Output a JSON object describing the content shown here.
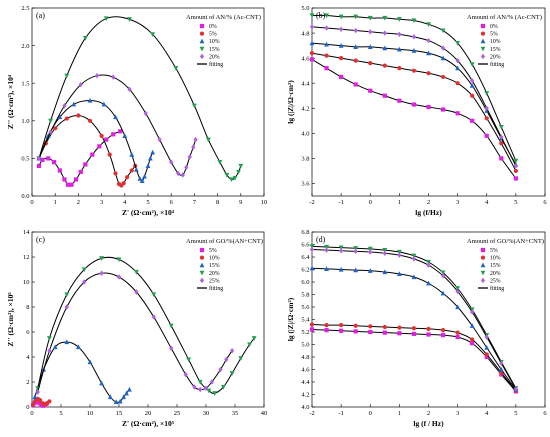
{
  "chart_data": [
    {
      "panel": "(a)",
      "type": "scatter",
      "xlabel": "Z' (Ω·cm²), ×10⁴",
      "ylabel": "Z'' (Ω·cm²), ×10⁴",
      "xlim": [
        0,
        10
      ],
      "ylim": [
        0,
        2.5
      ],
      "xticks": [
        "0",
        "1",
        "2",
        "3",
        "4",
        "5",
        "6",
        "7",
        "8",
        "9",
        "10"
      ],
      "yticks": [
        "0.0",
        "0.5",
        "1.0",
        "1.5",
        "2.0",
        "2.5"
      ],
      "legend_title": "Amount of AN/% (Ac-CNT)",
      "legend_position": "top-right",
      "series": [
        {
          "name": "0%",
          "color": "#e020e0",
          "marker": "square",
          "x": [
            0.3,
            0.45,
            0.7,
            0.95,
            1.2,
            1.4,
            1.55,
            1.7,
            1.9,
            2.1,
            2.3,
            2.6,
            2.9,
            3.2,
            3.5,
            3.8
          ],
          "y": [
            0.4,
            0.48,
            0.5,
            0.45,
            0.34,
            0.22,
            0.15,
            0.15,
            0.22,
            0.32,
            0.42,
            0.55,
            0.66,
            0.75,
            0.82,
            0.86
          ]
        },
        {
          "name": "5%",
          "color": "#e03030",
          "marker": "circle",
          "x": [
            0.3,
            0.6,
            1.0,
            1.5,
            2.0,
            2.5,
            3.0,
            3.35,
            3.6,
            3.75,
            3.85,
            3.95,
            4.1,
            4.3,
            4.45
          ],
          "y": [
            0.5,
            0.7,
            0.9,
            1.03,
            1.07,
            1.0,
            0.8,
            0.55,
            0.3,
            0.16,
            0.14,
            0.17,
            0.25,
            0.34,
            0.4
          ]
        },
        {
          "name": "10%",
          "color": "#1e64c8",
          "marker": "triangle-up",
          "x": [
            0.3,
            0.7,
            1.2,
            1.8,
            2.5,
            3.1,
            3.6,
            4.0,
            4.3,
            4.5,
            4.65,
            4.75,
            4.85,
            5.0,
            5.1,
            5.2
          ],
          "y": [
            0.5,
            0.8,
            1.05,
            1.22,
            1.27,
            1.22,
            1.05,
            0.8,
            0.55,
            0.35,
            0.23,
            0.2,
            0.26,
            0.4,
            0.5,
            0.58
          ]
        },
        {
          "name": "15%",
          "color": "#22a050",
          "marker": "triangle-down",
          "x": [
            0.3,
            0.8,
            1.5,
            2.3,
            3.2,
            4.2,
            5.2,
            6.2,
            7.0,
            7.6,
            8.1,
            8.4,
            8.6,
            8.75,
            8.9,
            9.0
          ],
          "y": [
            0.5,
            1.0,
            1.6,
            2.1,
            2.36,
            2.35,
            2.15,
            1.7,
            1.2,
            0.75,
            0.45,
            0.28,
            0.22,
            0.24,
            0.32,
            0.4
          ]
        },
        {
          "name": "20%",
          "color": "#b060e0",
          "marker": "diamond",
          "x": [
            0.3,
            0.8,
            1.4,
            2.1,
            2.8,
            3.5,
            4.2,
            4.9,
            5.5,
            6.0,
            6.3,
            6.5,
            6.65,
            6.8,
            6.95,
            7.05
          ],
          "y": [
            0.5,
            0.85,
            1.2,
            1.48,
            1.6,
            1.58,
            1.42,
            1.1,
            0.75,
            0.45,
            0.3,
            0.28,
            0.38,
            0.52,
            0.65,
            0.75
          ]
        }
      ],
      "fitting": {
        "name": "fitting",
        "color": "#000000"
      }
    },
    {
      "panel": "(b)",
      "type": "scatter",
      "xlabel": "lg (f/Hz)",
      "ylabel": "lg (|Z|/Ω·cm²)",
      "xlim": [
        -2,
        6
      ],
      "ylim": [
        3.5,
        5.0
      ],
      "xticks": [
        "-2",
        "-1",
        "0",
        "1",
        "2",
        "3",
        "4",
        "5",
        "6"
      ],
      "yticks": [
        "3.6",
        "3.8",
        "4.0",
        "4.2",
        "4.4",
        "4.6",
        "4.8",
        "5.0"
      ],
      "legend_title": "Amount of AN/% (Ac-CNT)",
      "legend_position": "top-right",
      "series": [
        {
          "name": "0%",
          "color": "#e020e0",
          "marker": "square",
          "x": [
            -2,
            -1.5,
            -1,
            -0.5,
            0,
            0.5,
            1,
            1.5,
            2,
            2.5,
            3,
            3.5,
            4,
            4.5,
            5
          ],
          "y": [
            4.59,
            4.52,
            4.45,
            4.39,
            4.34,
            4.3,
            4.26,
            4.23,
            4.21,
            4.19,
            4.16,
            4.1,
            3.98,
            3.8,
            3.64
          ]
        },
        {
          "name": "5%",
          "color": "#e03030",
          "marker": "circle",
          "x": [
            -2,
            -1.5,
            -1,
            -0.5,
            0,
            0.5,
            1,
            1.5,
            2,
            2.5,
            3,
            3.5,
            4,
            4.5,
            5
          ],
          "y": [
            4.64,
            4.62,
            4.6,
            4.58,
            4.56,
            4.54,
            4.52,
            4.5,
            4.48,
            4.45,
            4.4,
            4.3,
            4.12,
            3.92,
            3.7
          ]
        },
        {
          "name": "10%",
          "color": "#1e64c8",
          "marker": "triangle-up",
          "x": [
            -2,
            -1.5,
            -1,
            -0.5,
            0,
            0.5,
            1,
            1.5,
            2,
            2.5,
            3,
            3.5,
            4,
            4.5,
            5
          ],
          "y": [
            4.72,
            4.71,
            4.7,
            4.69,
            4.69,
            4.68,
            4.67,
            4.66,
            4.64,
            4.6,
            4.52,
            4.38,
            4.18,
            3.96,
            3.75
          ]
        },
        {
          "name": "15%",
          "color": "#22a050",
          "marker": "triangle-down",
          "x": [
            -2,
            -1.5,
            -1,
            -0.5,
            0,
            0.5,
            1,
            1.5,
            2,
            2.5,
            3,
            3.5,
            4,
            4.5,
            5
          ],
          "y": [
            4.94,
            4.94,
            4.93,
            4.93,
            4.92,
            4.92,
            4.91,
            4.9,
            4.87,
            4.82,
            4.72,
            4.55,
            4.32,
            4.05,
            3.78
          ]
        },
        {
          "name": "20%",
          "color": "#b060e0",
          "marker": "diamond",
          "x": [
            -2,
            -1.5,
            -1,
            -0.5,
            0,
            0.5,
            1,
            1.5,
            2,
            2.5,
            3,
            3.5,
            4,
            4.5,
            5
          ],
          "y": [
            4.85,
            4.84,
            4.83,
            4.82,
            4.81,
            4.8,
            4.79,
            4.77,
            4.74,
            4.68,
            4.58,
            4.42,
            4.2,
            3.97,
            3.74
          ]
        }
      ],
      "fitting": {
        "name": "fitting",
        "color": "#000000"
      }
    },
    {
      "panel": "(c)",
      "type": "scatter",
      "xlabel": "Z' (Ω·cm²), ×10⁵",
      "ylabel": "Z'' (Ω·cm²), ×10⁵",
      "xlim": [
        0,
        40
      ],
      "ylim": [
        0,
        14
      ],
      "xticks": [
        "0",
        "5",
        "10",
        "15",
        "20",
        "25",
        "30",
        "35",
        "40"
      ],
      "yticks": [
        "0",
        "2",
        "4",
        "6",
        "8",
        "10",
        "12",
        "14"
      ],
      "legend_title": "Amount of GO/%(AN+CNT)",
      "legend_position": "top-right",
      "series": [
        {
          "name": "5%",
          "color": "#e020e0",
          "marker": "square",
          "x": [
            0.2,
            0.5,
            0.9,
            1.3,
            1.6,
            1.9,
            2.2,
            2.5
          ],
          "y": [
            0.15,
            0.35,
            0.4,
            0.3,
            0.15,
            0.1,
            0.15,
            0.25
          ]
        },
        {
          "name": "10%",
          "color": "#e03030",
          "marker": "circle",
          "x": [
            0.2,
            0.6,
            1.0,
            1.4,
            1.8,
            2.2,
            2.6,
            3.0
          ],
          "y": [
            0.2,
            0.5,
            0.65,
            0.55,
            0.3,
            0.2,
            0.3,
            0.45
          ]
        },
        {
          "name": "15%",
          "color": "#1e64c8",
          "marker": "triangle-up",
          "x": [
            0.5,
            2,
            4,
            6,
            8,
            10,
            12,
            13.5,
            14.5,
            15.2,
            15.8,
            16.3,
            16.8
          ],
          "y": [
            0.8,
            3.0,
            4.8,
            5.2,
            4.8,
            3.6,
            1.9,
            0.8,
            0.4,
            0.45,
            0.8,
            1.1,
            1.4
          ]
        },
        {
          "name": "20%",
          "color": "#22a050",
          "marker": "triangle-down",
          "x": [
            1,
            3,
            6,
            9,
            12,
            15,
            18,
            21,
            24,
            27,
            29,
            30.5,
            31.5,
            33,
            34.5,
            36,
            37.5,
            38.3
          ],
          "y": [
            1.5,
            5.5,
            9.0,
            11.0,
            11.9,
            11.8,
            10.8,
            9.0,
            6.5,
            3.8,
            2.0,
            1.3,
            1.1,
            1.6,
            2.7,
            3.9,
            5.0,
            5.5
          ]
        },
        {
          "name": "25%",
          "color": "#b060e0",
          "marker": "diamond",
          "x": [
            1,
            3,
            6,
            9,
            12,
            15,
            18,
            21,
            24,
            26.5,
            28,
            29,
            30,
            31,
            32.5,
            33.5,
            34.5
          ],
          "y": [
            1.2,
            4.5,
            8.0,
            10.0,
            10.7,
            10.4,
            9.2,
            7.2,
            4.7,
            2.6,
            1.6,
            1.4,
            1.5,
            2.0,
            3.0,
            3.8,
            4.5
          ]
        }
      ],
      "fitting": {
        "name": "fitting",
        "color": "#000000"
      }
    },
    {
      "panel": "(d)",
      "type": "scatter",
      "xlabel": "lg (f / Hz)",
      "ylabel": "lg (|Z|/Ω·cm²)",
      "xlim": [
        -2,
        6
      ],
      "ylim": [
        4.0,
        6.8
      ],
      "xticks": [
        "-2",
        "-1",
        "0",
        "1",
        "2",
        "3",
        "4",
        "5",
        "6"
      ],
      "yticks": [
        "4.0",
        "4.2",
        "4.4",
        "4.6",
        "4.8",
        "5.0",
        "5.2",
        "5.4",
        "5.6",
        "5.8",
        "6.0",
        "6.2",
        "6.4",
        "6.6",
        "6.8"
      ],
      "legend_title": "Amount of GO/%(AN+CNT)",
      "legend_position": "top-right",
      "series": [
        {
          "name": "5%",
          "color": "#e020e0",
          "marker": "square",
          "x": [
            -2,
            -1.5,
            -1,
            -0.5,
            0,
            0.5,
            1,
            1.5,
            2,
            2.5,
            3,
            3.5,
            4,
            4.5,
            5
          ],
          "y": [
            5.24,
            5.23,
            5.22,
            5.21,
            5.2,
            5.19,
            5.18,
            5.17,
            5.16,
            5.15,
            5.12,
            5.02,
            4.8,
            4.52,
            4.25
          ]
        },
        {
          "name": "10%",
          "color": "#e03030",
          "marker": "circle",
          "x": [
            -2,
            -1.5,
            -1,
            -0.5,
            0,
            0.5,
            1,
            1.5,
            2,
            2.5,
            3,
            3.5,
            4,
            4.5,
            5
          ],
          "y": [
            5.32,
            5.31,
            5.31,
            5.3,
            5.29,
            5.28,
            5.27,
            5.26,
            5.25,
            5.23,
            5.19,
            5.08,
            4.84,
            4.55,
            4.26
          ]
        },
        {
          "name": "15%",
          "color": "#1e64c8",
          "marker": "triangle-up",
          "x": [
            -2,
            -1.5,
            -1,
            -0.5,
            0,
            0.5,
            1,
            1.5,
            2,
            2.5,
            3,
            3.5,
            4,
            4.5,
            5
          ],
          "y": [
            6.22,
            6.21,
            6.2,
            6.19,
            6.18,
            6.16,
            6.13,
            6.08,
            5.98,
            5.82,
            5.6,
            5.3,
            4.95,
            4.6,
            4.28
          ]
        },
        {
          "name": "20%",
          "color": "#22a050",
          "marker": "triangle-down",
          "x": [
            -2,
            -1.5,
            -1,
            -0.5,
            0,
            0.5,
            1,
            1.5,
            2,
            2.5,
            3,
            3.5,
            4,
            4.5,
            5
          ],
          "y": [
            6.57,
            6.56,
            6.55,
            6.54,
            6.53,
            6.51,
            6.48,
            6.42,
            6.32,
            6.15,
            5.9,
            5.56,
            5.15,
            4.72,
            4.3
          ]
        },
        {
          "name": "25%",
          "color": "#b060e0",
          "marker": "diamond",
          "x": [
            -2,
            -1.5,
            -1,
            -0.5,
            0,
            0.5,
            1,
            1.5,
            2,
            2.5,
            3,
            3.5,
            4,
            4.5,
            5
          ],
          "y": [
            6.52,
            6.51,
            6.5,
            6.49,
            6.48,
            6.46,
            6.43,
            6.37,
            6.27,
            6.1,
            5.85,
            5.52,
            5.12,
            4.7,
            4.29
          ]
        }
      ],
      "fitting": {
        "name": "fitting",
        "color": "#000000"
      }
    }
  ]
}
